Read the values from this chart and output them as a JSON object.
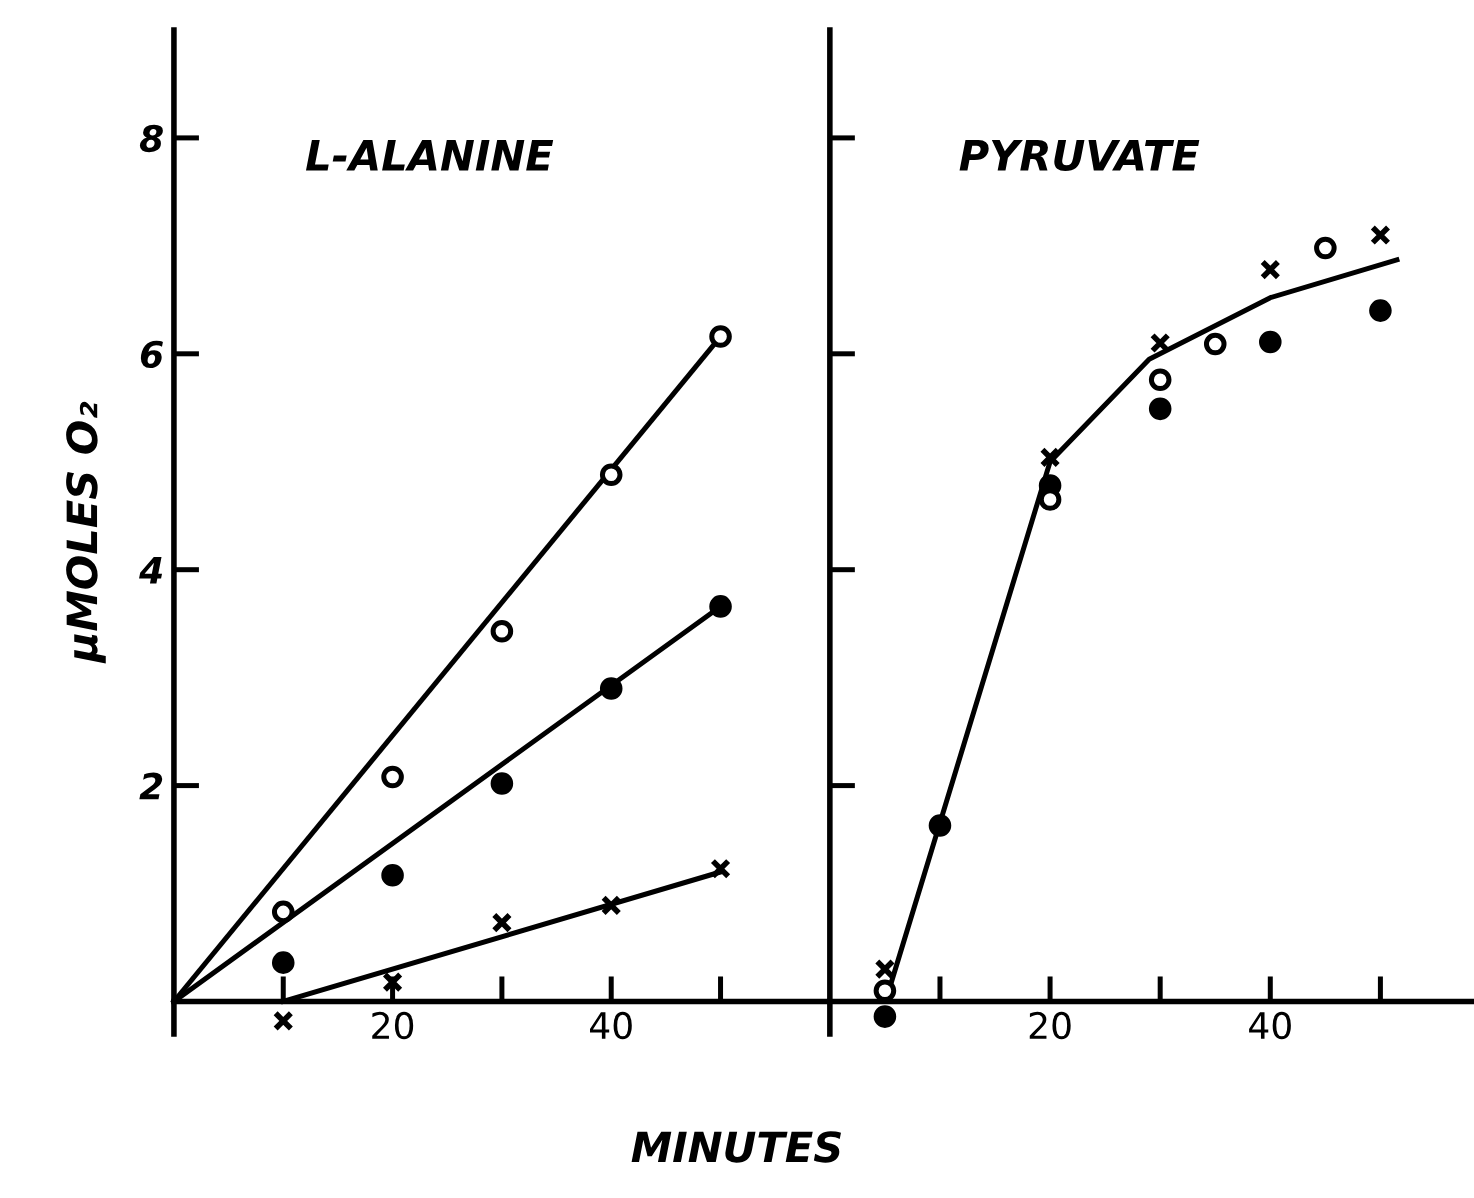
{
  "chart_data": [
    {
      "type": "scatter",
      "title": "L-ALANINE",
      "ylabel": "μMOLES O₂",
      "xlabel": "MINUTES",
      "xlim": [
        0,
        60
      ],
      "ylim": [
        -0.3,
        9
      ],
      "xticks": [
        {
          "value": 10,
          "label": null
        },
        20,
        {
          "value": 30,
          "label": null
        },
        40,
        {
          "value": 50,
          "label": null
        }
      ],
      "yticks": [
        2,
        4,
        6,
        8
      ],
      "grid": false,
      "legend": false,
      "series": [
        {
          "type": "line",
          "x": [
            0,
            50
          ],
          "values": [
            0,
            6.16
          ],
          "color": "#000000",
          "marker": "none",
          "line_style": "solid"
        },
        {
          "type": "line",
          "x": [
            0,
            50
          ],
          "values": [
            0,
            3.66
          ],
          "color": "#000000",
          "marker": "none",
          "line_style": "solid"
        },
        {
          "type": "line",
          "x": [
            10,
            50
          ],
          "values": [
            0,
            1.2
          ],
          "color": "#000000",
          "marker": "none",
          "line_style": "solid"
        },
        {
          "x": [
            10,
            20,
            30,
            40,
            50
          ],
          "values": [
            0.83,
            2.08,
            3.43,
            4.88,
            6.16
          ],
          "color": "#ffffff",
          "marker": "circle"
        },
        {
          "x": [
            10,
            20,
            30,
            40,
            50
          ],
          "values": [
            0.36,
            1.17,
            2.02,
            2.9,
            3.66
          ],
          "color": "#000000",
          "marker": "circle"
        },
        {
          "x": [
            10,
            20,
            30,
            40,
            50
          ],
          "values": [
            -0.18,
            0.18,
            0.73,
            0.89,
            1.23
          ],
          "color": "#000000",
          "marker": "cross"
        }
      ]
    },
    {
      "type": "scatter",
      "title": "PYRUVATE",
      "xlim": [
        0,
        58.5
      ],
      "ylim": [
        -0.3,
        9
      ],
      "tick_labels": "x",
      "xticks": [
        {
          "value": 10,
          "label": null
        },
        20,
        {
          "value": 30,
          "label": null
        },
        40,
        {
          "value": 50,
          "label": null
        }
      ],
      "yticks": [
        {
          "value": 2,
          "label": null
        },
        {
          "value": 4,
          "label": null
        },
        {
          "value": 6,
          "label": null
        },
        {
          "value": 8,
          "label": null
        }
      ],
      "grid": false,
      "legend": false,
      "series": [
        {
          "type": "line",
          "x": [
            5.5,
            20,
            29,
            40,
            51.5
          ],
          "values": [
            0.15,
            5.0,
            5.95,
            6.52,
            6.87
          ],
          "color": "#000000",
          "marker": "none",
          "line_style": "solid"
        },
        {
          "x": [
            5,
            20,
            30,
            40,
            50
          ],
          "values": [
            0.3,
            5.04,
            6.1,
            6.78,
            7.1
          ],
          "color": "#000000",
          "marker": "cross"
        },
        {
          "x": [
            5,
            20,
            30,
            35,
            45
          ],
          "values": [
            0.1,
            4.65,
            5.76,
            6.09,
            6.98
          ],
          "color": "#ffffff",
          "marker": "circle"
        },
        {
          "x": [
            5,
            10,
            20,
            30,
            40,
            50
          ],
          "values": [
            -0.14,
            1.63,
            4.78,
            5.49,
            6.11,
            6.4
          ],
          "color": "#000000",
          "marker": "circle"
        }
      ]
    }
  ]
}
